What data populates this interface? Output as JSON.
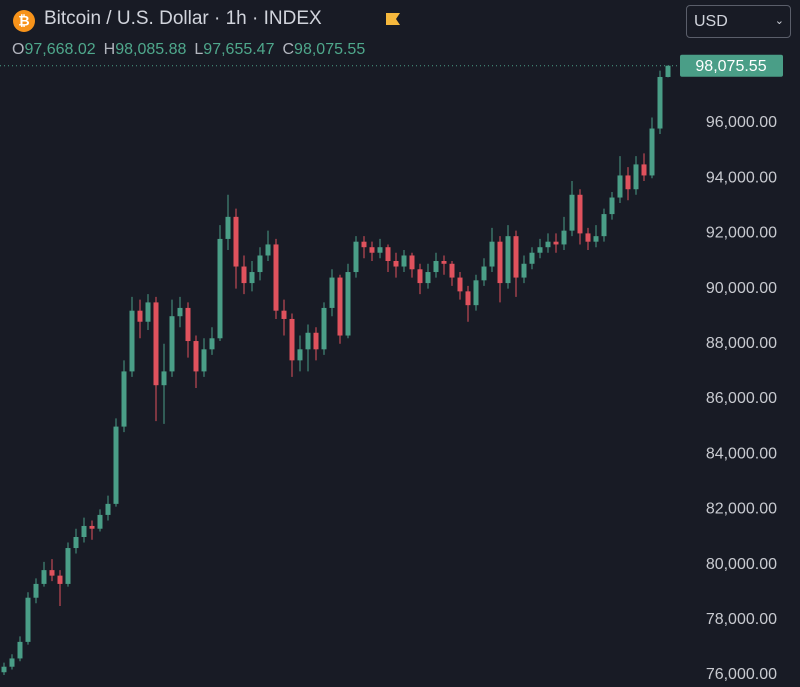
{
  "chart_data": {
    "type": "candlestick",
    "title": "Bitcoin / U.S. Dollar · 1h · INDEX",
    "currency": "USD",
    "ohlc_letters": [
      "O",
      "H",
      "L",
      "C"
    ],
    "last_labels": [
      "97,668.02",
      "98,085.88",
      "97,655.47",
      "98,075.55"
    ],
    "up_color": "#4a9e87",
    "down_color": "#e0525d",
    "ylim": [
      75565,
      100457
    ],
    "yticks": [
      {
        "value": 76000,
        "label": "76,000.00"
      },
      {
        "value": 78000,
        "label": "78,000.00"
      },
      {
        "value": 80000,
        "label": "80,000.00"
      },
      {
        "value": 82000,
        "label": "82,000.00"
      },
      {
        "value": 84000,
        "label": "84,000.00"
      },
      {
        "value": 86000,
        "label": "86,000.00"
      },
      {
        "value": 88000,
        "label": "88,000.00"
      },
      {
        "value": 90000,
        "label": "90,000.00"
      },
      {
        "value": 92000,
        "label": "92,000.00"
      },
      {
        "value": 94000,
        "label": "94,000.00"
      },
      {
        "value": 96000,
        "label": "96,000.00"
      }
    ],
    "open": [
      76100,
      76300,
      76600,
      77200,
      78800,
      79300,
      79800,
      79600,
      79300,
      80600,
      81000,
      81400,
      81300,
      81800,
      82200,
      85000,
      87000,
      89200,
      88800,
      89500,
      86500,
      87000,
      89000,
      89300,
      88100,
      87000,
      87800,
      88200,
      91800,
      92600,
      90800,
      90200,
      90600,
      91200,
      91600,
      89200,
      88900,
      87400,
      87800,
      88400,
      87800,
      89300,
      90400,
      88300,
      90600,
      91700,
      91500,
      91300,
      91500,
      91000,
      90800,
      91200,
      90700,
      90200,
      90600,
      91000,
      90900,
      90400,
      89900,
      89400,
      90300,
      90800,
      91700,
      90200,
      91900,
      90400,
      90900,
      91300,
      91500,
      91700,
      91600,
      92100,
      93400,
      92000,
      91700,
      91900,
      92700,
      93300,
      94100,
      93600,
      94500,
      94100,
      95800,
      97668.02
    ],
    "high": [
      76450,
      76750,
      77400,
      79000,
      79500,
      80100,
      80200,
      79800,
      80800,
      81300,
      81700,
      81600,
      82000,
      82500,
      85300,
      87400,
      89700,
      89600,
      89800,
      89700,
      88000,
      89600,
      89700,
      89500,
      88300,
      88200,
      88600,
      92300,
      93400,
      92900,
      91200,
      91000,
      91500,
      92100,
      91800,
      89600,
      89100,
      88300,
      88700,
      88600,
      89500,
      90700,
      90500,
      90900,
      91900,
      91900,
      91700,
      91800,
      91600,
      91300,
      91400,
      91300,
      90900,
      90900,
      91300,
      91200,
      91000,
      90600,
      90100,
      90500,
      91100,
      92200,
      91900,
      92300,
      92100,
      91200,
      91500,
      91800,
      92000,
      92000,
      92600,
      93900,
      93600,
      92200,
      92300,
      92900,
      93500,
      94800,
      94400,
      94800,
      94900,
      96200,
      97900,
      98085.88
    ],
    "low": [
      76000,
      76200,
      76500,
      77100,
      78600,
      79200,
      79400,
      78500,
      79200,
      80400,
      80800,
      80900,
      81200,
      81600,
      82100,
      84800,
      86800,
      88200,
      88500,
      85200,
      85100,
      86800,
      88600,
      87500,
      86400,
      86800,
      87600,
      88100,
      91400,
      90000,
      89800,
      89900,
      90300,
      91000,
      88900,
      88300,
      86800,
      87000,
      87000,
      87400,
      87600,
      89000,
      88000,
      88200,
      90400,
      91100,
      91000,
      91100,
      90600,
      90400,
      90600,
      90400,
      89800,
      90000,
      90400,
      90500,
      90100,
      89600,
      88800,
      89200,
      90100,
      90600,
      89500,
      90000,
      89700,
      90200,
      90700,
      91100,
      91300,
      91300,
      91400,
      91900,
      91600,
      91400,
      91500,
      91700,
      92500,
      93100,
      93200,
      93400,
      93900,
      94000,
      95600,
      97655.47
    ],
    "close": [
      76300,
      76600,
      77200,
      78800,
      79300,
      79800,
      79600,
      79300,
      80600,
      81000,
      81400,
      81300,
      81800,
      82200,
      85000,
      87000,
      89200,
      88800,
      89500,
      86500,
      87000,
      89000,
      89300,
      88100,
      87000,
      87800,
      88200,
      91800,
      92600,
      90800,
      90200,
      90600,
      91200,
      91600,
      89200,
      88900,
      87400,
      87800,
      88400,
      87800,
      89300,
      90400,
      88300,
      90600,
      91700,
      91500,
      91300,
      91500,
      91000,
      90800,
      91200,
      90700,
      90200,
      90600,
      91000,
      90900,
      90400,
      89900,
      89400,
      90300,
      90800,
      91700,
      90200,
      91900,
      90400,
      90900,
      91300,
      91500,
      91700,
      91600,
      92100,
      93400,
      92000,
      91700,
      91900,
      92700,
      93300,
      94100,
      93600,
      94500,
      94100,
      95800,
      97668.02,
      98075.55
    ]
  }
}
